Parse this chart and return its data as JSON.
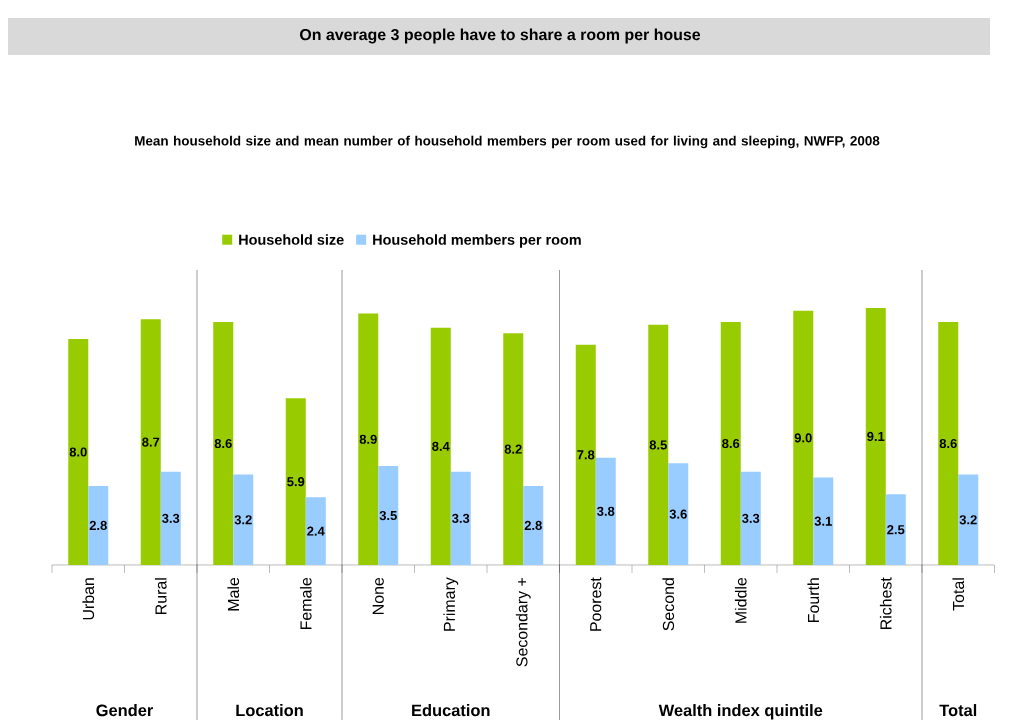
{
  "chart_data": {
    "type": "bar",
    "title": "On average 3 people have to share a room per house",
    "subtitle": "Mean household size and mean number of household members per room used for living and sleeping, NWFP, 2008",
    "categories": [
      "Urban",
      "Rural",
      "Male",
      "Female",
      "None",
      "Primary",
      "Secondary +",
      "Poorest",
      "Second",
      "Middle",
      "Fourth",
      "Richest",
      "Total"
    ],
    "series": [
      {
        "name": "Household size",
        "color": "#99cc00",
        "values": [
          8.0,
          8.7,
          8.6,
          5.9,
          8.9,
          8.4,
          8.2,
          7.8,
          8.5,
          8.6,
          9.0,
          9.1,
          8.6
        ],
        "value_labels": [
          "8.0",
          "8.7",
          "8.6",
          "5.9",
          "8.9",
          "8.4",
          "8.2",
          "7.8",
          "8.5",
          "8.6",
          "9.0",
          "9.1",
          "8.6"
        ]
      },
      {
        "name": "Household members per room",
        "color": "#99ccff",
        "values": [
          2.8,
          3.3,
          3.2,
          2.4,
          3.5,
          3.3,
          2.8,
          3.8,
          3.6,
          3.3,
          3.1,
          2.5,
          3.2
        ],
        "value_labels": [
          "2.8",
          "3.3",
          "3.2",
          "2.4",
          "3.5",
          "3.3",
          "2.8",
          "3.8",
          "3.6",
          "3.3",
          "3.1",
          "2.5",
          "3.2"
        ]
      }
    ],
    "annotations": [
      "Gender",
      "Location",
      "Education",
      "Wealth index quintile",
      "Total"
    ],
    "legend": "top"
  }
}
